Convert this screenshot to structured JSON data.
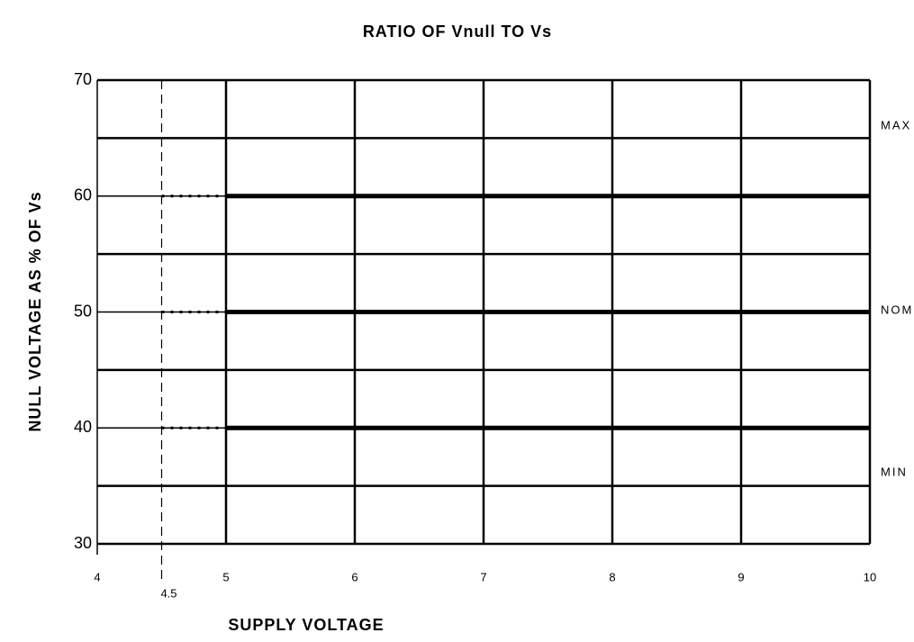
{
  "chart_data": {
    "type": "line",
    "title": "RATIO OF Vnull TO Vs",
    "x_label": "SUPPLY VOLTAGE",
    "y_label": "NULL VOLTAGE AS % OF Vs",
    "xlim": [
      4,
      10
    ],
    "xticks": [
      4,
      5,
      6,
      7,
      8,
      9,
      10
    ],
    "ylim": [
      30,
      70
    ],
    "yticks": [
      30,
      40,
      50,
      60,
      70
    ],
    "y_minor_grid": [
      35,
      45,
      55,
      65
    ],
    "reference_x": 4.5,
    "x": [
      4.5,
      5,
      10
    ],
    "grid": true,
    "series": [
      {
        "name": "MAX",
        "color": "#000000",
        "values": [
          60,
          60,
          60
        ]
      },
      {
        "name": "NOM",
        "color": "#000000",
        "values": [
          50,
          50,
          50
        ]
      },
      {
        "name": "MIN",
        "color": "#000000",
        "values": [
          40,
          40,
          40
        ]
      }
    ]
  }
}
